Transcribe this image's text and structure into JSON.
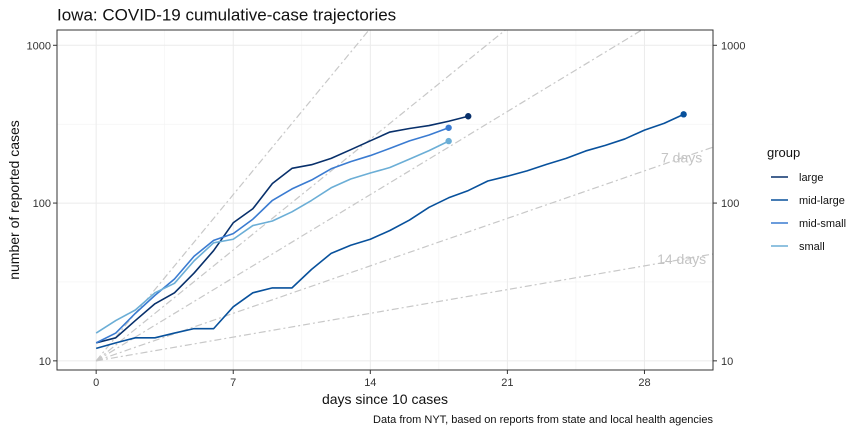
{
  "title": "Iowa: COVID-19 cumulative-case trajectories",
  "caption": "Data from NYT, based on reports from state and local health agencies",
  "chart_data": {
    "type": "line",
    "title": "Iowa: COVID-19 cumulative-case trajectories",
    "xlabel": "days since 10 cases",
    "ylabel": "number of reported cases",
    "y_scale": "log10",
    "xlim": [
      -2,
      31.5
    ],
    "ylim": [
      8.75,
      1250
    ],
    "x_ticks": [
      0,
      7,
      14,
      21,
      28
    ],
    "x_tick_labels": [
      "0",
      "7",
      "14",
      "21",
      "28"
    ],
    "y_ticks": [
      10,
      100,
      1000
    ],
    "y_tick_labels": [
      "10",
      "100",
      "1000"
    ],
    "secondary_y_axis": true,
    "grid": true,
    "legend": {
      "title": "group",
      "position": "right"
    },
    "reference_lines": [
      {
        "doubling_days": 2,
        "label": ""
      },
      {
        "doubling_days": 3,
        "label": ""
      },
      {
        "doubling_days": 4,
        "label": ""
      },
      {
        "doubling_days": 7,
        "label": "7 days"
      },
      {
        "doubling_days": 14,
        "label": "14 days"
      }
    ],
    "series": [
      {
        "name": "large",
        "color": "#08306b",
        "x": [
          0,
          1,
          2,
          3,
          4,
          5,
          6,
          7,
          8,
          9,
          10,
          11,
          12,
          13,
          14,
          15,
          16,
          17,
          18,
          19
        ],
        "y": [
          13,
          14,
          18,
          23,
          27,
          36,
          50,
          75,
          92,
          133,
          166,
          175,
          192,
          218,
          248,
          282,
          297,
          310,
          330,
          355
        ],
        "end_point": true
      },
      {
        "name": "mid-large",
        "color": "#08519c",
        "x": [
          0,
          1,
          2,
          3,
          4,
          5,
          6,
          7,
          8,
          9,
          10,
          11,
          12,
          13,
          14,
          15,
          16,
          17,
          18,
          19,
          20,
          21,
          22,
          23,
          24,
          25,
          26,
          27,
          28,
          29,
          30
        ],
        "y": [
          12,
          13,
          14,
          14,
          15,
          16,
          16,
          22,
          27,
          29,
          29,
          38,
          48,
          54,
          59,
          67,
          78,
          94,
          108,
          120,
          138,
          148,
          160,
          176,
          192,
          214,
          232,
          255,
          290,
          320,
          365
        ],
        "end_point": true
      },
      {
        "name": "mid-small",
        "color": "#3a7bd1",
        "x": [
          0,
          1,
          2,
          3,
          4,
          5,
          6,
          7,
          8,
          9,
          10,
          11,
          12,
          13,
          14,
          15,
          16,
          17,
          18
        ],
        "y": [
          13,
          15,
          20,
          26,
          33,
          46,
          58,
          64,
          79,
          104,
          123,
          140,
          165,
          183,
          200,
          222,
          248,
          270,
          300
        ],
        "end_point": true
      },
      {
        "name": "small",
        "color": "#6baed6",
        "x": [
          0,
          1,
          2,
          3,
          4,
          5,
          6,
          7,
          8,
          9,
          10,
          11,
          12,
          13,
          14,
          15,
          16,
          17,
          18
        ],
        "y": [
          15,
          18,
          21,
          27,
          31,
          43,
          56,
          59,
          72,
          77,
          88,
          104,
          125,
          142,
          155,
          168,
          190,
          215,
          247
        ],
        "end_point": true
      }
    ]
  }
}
